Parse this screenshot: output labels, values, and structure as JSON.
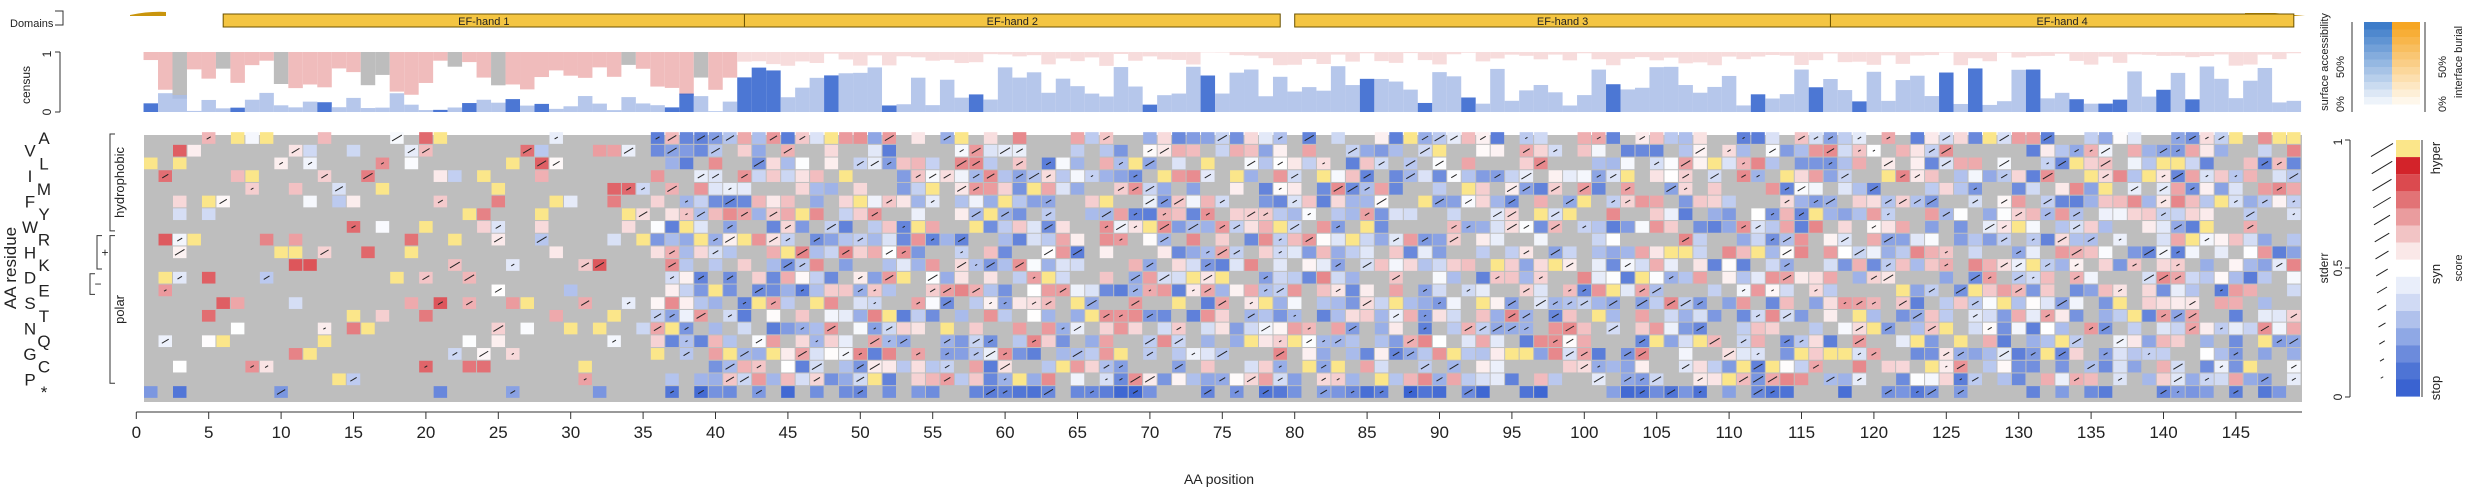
{
  "chart_data": {
    "type": "heatmap",
    "title": "",
    "xlabel": "AA position",
    "ylabel": "AA residue",
    "xlim": [
      0,
      150
    ],
    "x_ticks": [
      0,
      5,
      10,
      15,
      20,
      25,
      30,
      35,
      40,
      45,
      50,
      55,
      60,
      65,
      70,
      75,
      80,
      85,
      90,
      95,
      100,
      105,
      110,
      115,
      120,
      125,
      130,
      135,
      140,
      145
    ],
    "rows": [
      "A",
      "V",
      "L",
      "I",
      "M",
      "F",
      "Y",
      "W",
      "R",
      "H",
      "K",
      "D",
      "E",
      "S",
      "T",
      "N",
      "Q",
      "G",
      "C",
      "P",
      "*"
    ],
    "groups": [
      {
        "label": "hydrophobic",
        "from_row": 0,
        "to_row": 7
      },
      {
        "label": "polar",
        "from_row": 8,
        "to_row": 19
      },
      {
        "label": "+",
        "from_row": 8,
        "to_row": 10
      },
      {
        "label": "−",
        "from_row": 11,
        "to_row": 12
      }
    ],
    "domains": {
      "label": "Domains",
      "items": [
        {
          "name": "EF-hand 1",
          "start": 6,
          "end": 42
        },
        {
          "name": "EF-hand 2",
          "start": 42,
          "end": 79
        },
        {
          "name": "EF-hand 3",
          "start": 80,
          "end": 117
        },
        {
          "name": "EF-hand 4",
          "start": 117,
          "end": 149
        }
      ]
    },
    "census": {
      "label": "census",
      "ylim": [
        0,
        1
      ],
      "ticks": [
        "0",
        "1"
      ]
    },
    "legend_accessibility": {
      "left_label": "surface accessibility",
      "right_label": "interface burial",
      "ticks": [
        "0%",
        "50%"
      ],
      "colors": {
        "accessibility": "#3d7cc9",
        "burial": "#f6a623"
      }
    },
    "legend_stderr": {
      "label": "stderr",
      "ticks": [
        "0",
        "0.5",
        "1"
      ]
    },
    "legend_score": {
      "label": "score",
      "categories": [
        "hyper",
        "syn",
        "stop"
      ],
      "colors": {
        "hyper": "#d3232a",
        "syn": "#ffffff",
        "stop": "#3a63d1",
        "missing": "#bebebe",
        "wildtype": "#fbe68a"
      }
    },
    "score_range": [
      -1,
      1
    ]
  }
}
